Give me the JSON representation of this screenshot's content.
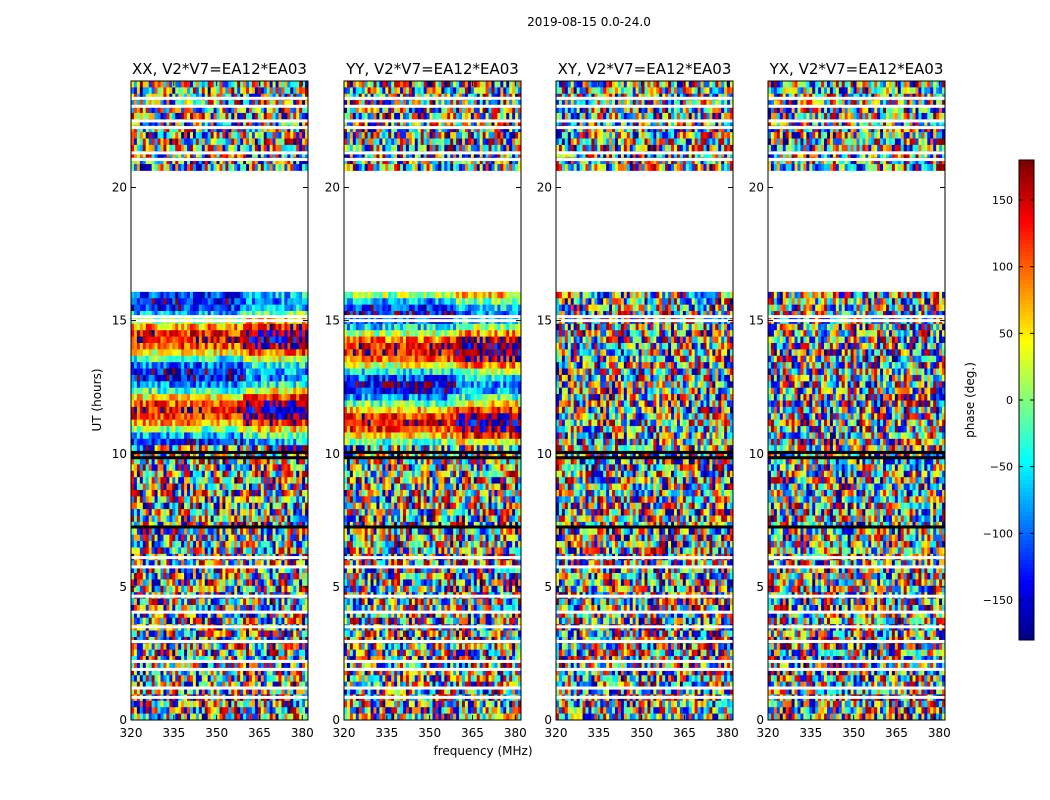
{
  "figure": {
    "suptitle": "2019-08-15 0.0-24.0",
    "xlabel": "frequency (MHz)",
    "ylabel": "UT (hours)",
    "colorbar_label": "phase (deg.)"
  },
  "chart_data": {
    "type": "heatmap",
    "xlim": [
      320,
      382
    ],
    "ylim": [
      0,
      24
    ],
    "xticks": [
      320,
      335,
      350,
      365,
      380
    ],
    "yticks": [
      0,
      5,
      10,
      15,
      20
    ],
    "colormap": "jet",
    "color_range": [
      -180,
      180
    ],
    "colorbar_ticks": [
      150,
      100,
      50,
      0,
      -50,
      -100,
      -150
    ],
    "colorbar_tick_labels": [
      "150",
      "100",
      "50",
      "0",
      "−50",
      "−100",
      "−150"
    ],
    "grid": false,
    "empty_ut_ranges": [
      [
        16.2,
        20.7
      ]
    ],
    "flagged_ut_rows": [
      0.85,
      1.2,
      1.9,
      2.2,
      2.95,
      3.5,
      4.05,
      4.65,
      5.75,
      6.1,
      7.25,
      9.85,
      10.05,
      15.0,
      15.15,
      18.9,
      21.05,
      21.3,
      22.25,
      22.5,
      23.05,
      23.35
    ],
    "panels": [
      {
        "title": "XX, V2*V7=EA12*EA03",
        "pol": "XX",
        "coherent": true
      },
      {
        "title": "YY, V2*V7=EA12*EA03",
        "pol": "YY",
        "coherent": true
      },
      {
        "title": "XY, V2*V7=EA12*EA03",
        "pol": "XY",
        "coherent": false
      },
      {
        "title": "YX, V2*V7=EA12*EA03",
        "pol": "YX",
        "coherent": false
      }
    ]
  }
}
